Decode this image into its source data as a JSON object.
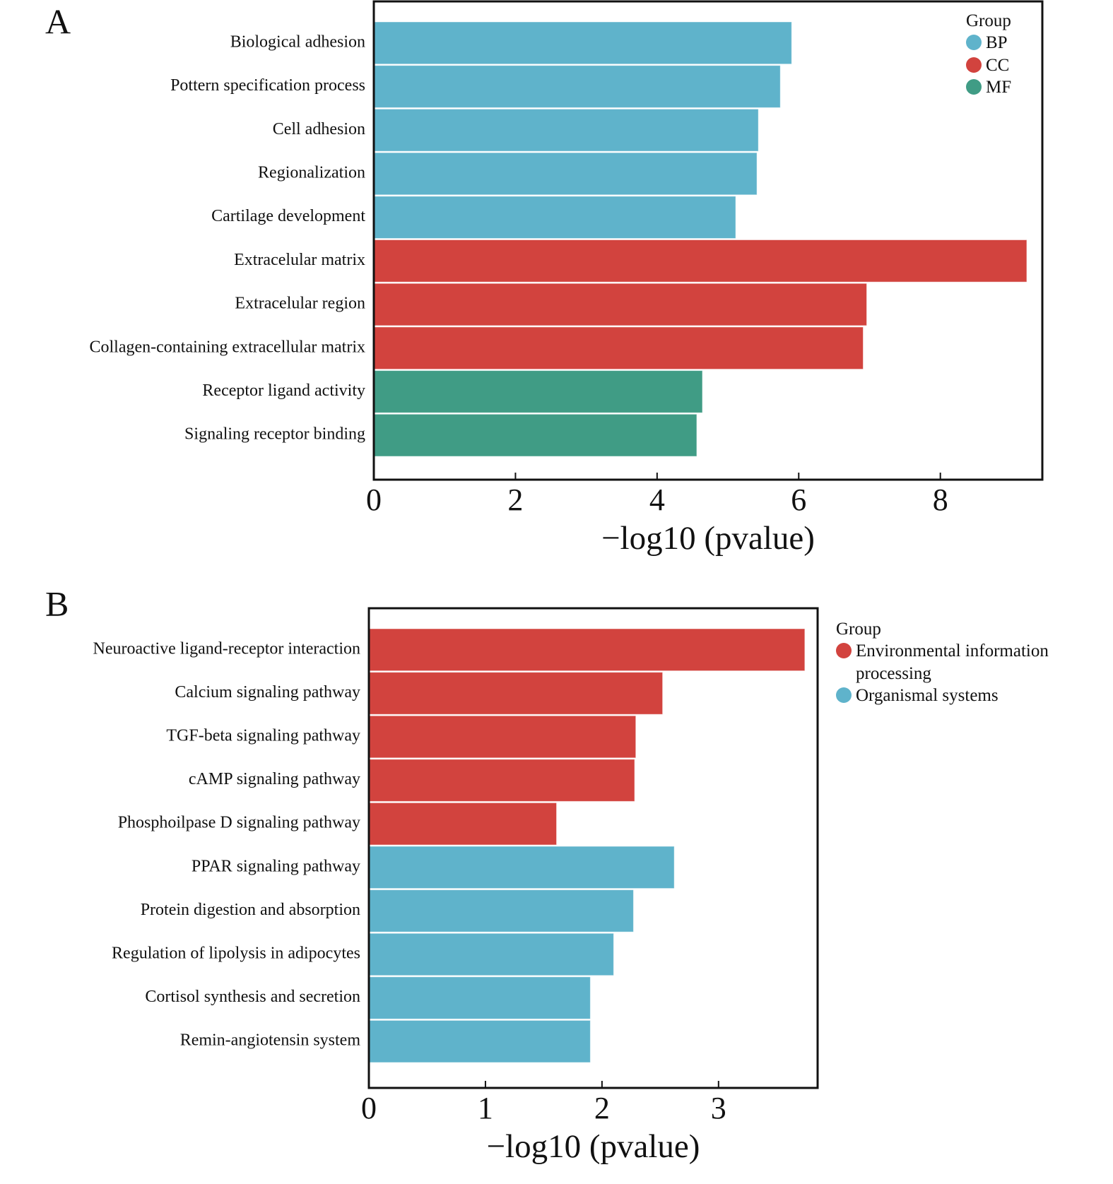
{
  "chart_data": [
    {
      "type": "bar",
      "orientation": "horizontal",
      "panel_label": "A",
      "categories": [
        "Biological adhesion",
        "Pottern specification process",
        "Cell adhesion",
        "Regionalization",
        "Cartilage development",
        "Extracelular matrix",
        "Extracelular region",
        "Collagen-containing extracellular matrix",
        "Receptor ligand activity",
        "Signaling receptor binding"
      ],
      "series": [
        {
          "name": "BP",
          "color": "#5fb3cb",
          "values": [
            5.9,
            5.74,
            5.43,
            5.41,
            5.11,
            null,
            null,
            null,
            null,
            null
          ]
        },
        {
          "name": "CC",
          "color": "#d2433e",
          "values": [
            null,
            null,
            null,
            null,
            null,
            9.22,
            6.96,
            6.91,
            null,
            null
          ]
        },
        {
          "name": "MF",
          "color": "#409c85",
          "values": [
            null,
            null,
            null,
            null,
            null,
            null,
            null,
            null,
            4.64,
            4.56
          ]
        }
      ],
      "xlim": [
        0,
        9.44
      ],
      "xticks": [
        0,
        2,
        4,
        6,
        8
      ],
      "xlabel": "−log10 (pvalue)",
      "legend_title": "Group",
      "legend": "upper right"
    },
    {
      "type": "bar",
      "orientation": "horizontal",
      "panel_label": "B",
      "categories": [
        "Neuroactive ligand-receptor interaction",
        "Calcium signaling pathway",
        "TGF-beta signaling pathway",
        "cAMP signaling pathway",
        "Phosphoilpase D signaling pathway",
        "PPAR signaling pathway",
        "Protein digestion and absorption",
        "Regulation of lipolysis in adipocytes",
        "Cortisol synthesis and secretion",
        "Remin-angiotensin system"
      ],
      "series": [
        {
          "name": "Environmental information processing",
          "color": "#d2433e",
          "values": [
            3.74,
            2.52,
            2.29,
            2.28,
            1.61,
            null,
            null,
            null,
            null,
            null
          ]
        },
        {
          "name": "Organismal systems",
          "color": "#5fb3cb",
          "values": [
            null,
            null,
            null,
            null,
            null,
            2.62,
            2.27,
            2.1,
            1.9,
            1.9
          ]
        }
      ],
      "xlim": [
        0,
        3.85
      ],
      "xticks": [
        0,
        1,
        2,
        3
      ],
      "xlabel": "−log10 (pvalue)",
      "legend_title": "Group",
      "legend": "outside right"
    }
  ]
}
